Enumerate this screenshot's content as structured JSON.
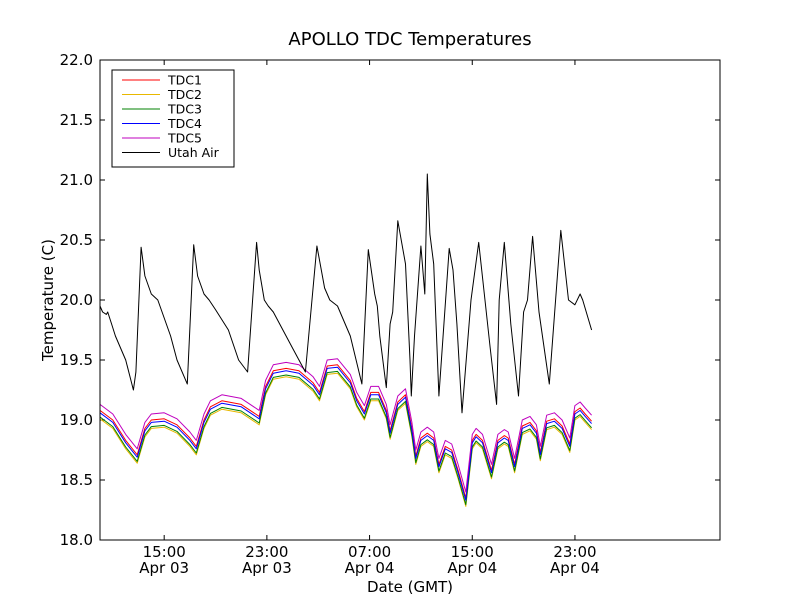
{
  "chart_data": {
    "type": "line",
    "title": "APOLLO TDC Temperatures",
    "xlabel": "Date (GMT)",
    "ylabel": "Temperature (C)",
    "xlim": [
      10.0,
      58.3
    ],
    "ylim": [
      18.0,
      22.0
    ],
    "x_unit": "hours since Apr 03 00:00 GMT",
    "x_ticks": [
      {
        "value": 15,
        "line1": "15:00",
        "line2": "Apr 03"
      },
      {
        "value": 23,
        "line1": "23:00",
        "line2": "Apr 03"
      },
      {
        "value": 31,
        "line1": "07:00",
        "line2": "Apr 04"
      },
      {
        "value": 39,
        "line1": "15:00",
        "line2": "Apr 04"
      },
      {
        "value": 47,
        "line1": "23:00",
        "line2": "Apr 04"
      }
    ],
    "y_ticks": [
      "18.0",
      "18.5",
      "19.0",
      "19.5",
      "20.0",
      "20.5",
      "21.0",
      "21.5",
      "22.0"
    ],
    "legend_position": "top-left",
    "series": [
      {
        "name": "TDC1",
        "color": "#ff0000",
        "offset": 0.03,
        "x": [
          10.0,
          11.0,
          12.0,
          12.9,
          13.5,
          14.0,
          15.0,
          16.0,
          17.0,
          17.5,
          18.1,
          18.6,
          19.5,
          21.0,
          22.4,
          22.9,
          23.5,
          24.5,
          25.5,
          26.6,
          27.1,
          27.7,
          28.5,
          29.5,
          30.0,
          30.6,
          31.1,
          31.7,
          32.3,
          32.6,
          33.2,
          33.8,
          34.3,
          34.6,
          35.0,
          35.5,
          36.0,
          36.4,
          36.9,
          37.4,
          37.9,
          38.5,
          39.0,
          39.3,
          39.8,
          40.5,
          41.0,
          41.5,
          41.8,
          42.3,
          42.9,
          43.5,
          44.0,
          44.3,
          44.8,
          45.4,
          46.0,
          46.6,
          47.0,
          47.4,
          47.8,
          48.3
        ],
        "y": [
          19.05,
          18.97,
          18.8,
          18.68,
          18.9,
          18.97,
          18.98,
          18.93,
          18.82,
          18.75,
          18.97,
          19.08,
          19.13,
          19.1,
          19.0,
          19.25,
          19.38,
          19.4,
          19.38,
          19.28,
          19.2,
          19.42,
          19.43,
          19.3,
          19.15,
          19.04,
          19.2,
          19.2,
          19.05,
          18.88,
          19.12,
          19.18,
          18.9,
          18.67,
          18.82,
          18.86,
          18.82,
          18.6,
          18.75,
          18.72,
          18.55,
          18.32,
          18.8,
          18.85,
          18.8,
          18.55,
          18.8,
          18.84,
          18.82,
          18.6,
          18.92,
          18.95,
          18.88,
          18.7,
          18.96,
          18.98,
          18.92,
          18.77,
          19.04,
          19.07,
          19.02,
          18.96
        ]
      },
      {
        "name": "TDC2",
        "color": "#e8b800",
        "offset": -0.04,
        "x": [
          10.0,
          11.0,
          12.0,
          12.9,
          13.5,
          14.0,
          15.0,
          16.0,
          17.0,
          17.5,
          18.1,
          18.6,
          19.5,
          21.0,
          22.4,
          22.9,
          23.5,
          24.5,
          25.5,
          26.6,
          27.1,
          27.7,
          28.5,
          29.5,
          30.0,
          30.6,
          31.1,
          31.7,
          32.3,
          32.6,
          33.2,
          33.8,
          34.3,
          34.6,
          35.0,
          35.5,
          36.0,
          36.4,
          36.9,
          37.4,
          37.9,
          38.5,
          39.0,
          39.3,
          39.8,
          40.5,
          41.0,
          41.5,
          41.8,
          42.3,
          42.9,
          43.5,
          44.0,
          44.3,
          44.8,
          45.4,
          46.0,
          46.6,
          47.0,
          47.4,
          47.8,
          48.3
        ],
        "y": [
          19.05,
          18.97,
          18.8,
          18.68,
          18.9,
          18.97,
          18.98,
          18.93,
          18.82,
          18.75,
          18.97,
          19.08,
          19.13,
          19.1,
          19.0,
          19.25,
          19.38,
          19.4,
          19.38,
          19.28,
          19.2,
          19.42,
          19.43,
          19.3,
          19.15,
          19.04,
          19.2,
          19.2,
          19.05,
          18.88,
          19.12,
          19.18,
          18.9,
          18.67,
          18.82,
          18.86,
          18.82,
          18.6,
          18.75,
          18.72,
          18.55,
          18.32,
          18.8,
          18.85,
          18.8,
          18.55,
          18.8,
          18.84,
          18.82,
          18.6,
          18.92,
          18.95,
          18.88,
          18.7,
          18.96,
          18.98,
          18.92,
          18.77,
          19.04,
          19.07,
          19.02,
          18.96
        ]
      },
      {
        "name": "TDC3",
        "color": "#008000",
        "offset": -0.025,
        "x": [
          10.0,
          11.0,
          12.0,
          12.9,
          13.5,
          14.0,
          15.0,
          16.0,
          17.0,
          17.5,
          18.1,
          18.6,
          19.5,
          21.0,
          22.4,
          22.9,
          23.5,
          24.5,
          25.5,
          26.6,
          27.1,
          27.7,
          28.5,
          29.5,
          30.0,
          30.6,
          31.1,
          31.7,
          32.3,
          32.6,
          33.2,
          33.8,
          34.3,
          34.6,
          35.0,
          35.5,
          36.0,
          36.4,
          36.9,
          37.4,
          37.9,
          38.5,
          39.0,
          39.3,
          39.8,
          40.5,
          41.0,
          41.5,
          41.8,
          42.3,
          42.9,
          43.5,
          44.0,
          44.3,
          44.8,
          45.4,
          46.0,
          46.6,
          47.0,
          47.4,
          47.8,
          48.3
        ],
        "y": [
          19.05,
          18.97,
          18.8,
          18.68,
          18.9,
          18.97,
          18.98,
          18.93,
          18.82,
          18.75,
          18.97,
          19.08,
          19.13,
          19.1,
          19.0,
          19.25,
          19.38,
          19.4,
          19.38,
          19.28,
          19.2,
          19.42,
          19.43,
          19.3,
          19.15,
          19.04,
          19.2,
          19.2,
          19.05,
          18.88,
          19.12,
          19.18,
          18.9,
          18.67,
          18.82,
          18.86,
          18.82,
          18.6,
          18.75,
          18.72,
          18.55,
          18.32,
          18.8,
          18.85,
          18.8,
          18.55,
          18.8,
          18.84,
          18.82,
          18.6,
          18.92,
          18.95,
          18.88,
          18.7,
          18.96,
          18.98,
          18.92,
          18.77,
          19.04,
          19.07,
          19.02,
          18.96
        ]
      },
      {
        "name": "TDC4",
        "color": "#0000ff",
        "offset": 0.01,
        "x": [
          10.0,
          11.0,
          12.0,
          12.9,
          13.5,
          14.0,
          15.0,
          16.0,
          17.0,
          17.5,
          18.1,
          18.6,
          19.5,
          21.0,
          22.4,
          22.9,
          23.5,
          24.5,
          25.5,
          26.6,
          27.1,
          27.7,
          28.5,
          29.5,
          30.0,
          30.6,
          31.1,
          31.7,
          32.3,
          32.6,
          33.2,
          33.8,
          34.3,
          34.6,
          35.0,
          35.5,
          36.0,
          36.4,
          36.9,
          37.4,
          37.9,
          38.5,
          39.0,
          39.3,
          39.8,
          40.5,
          41.0,
          41.5,
          41.8,
          42.3,
          42.9,
          43.5,
          44.0,
          44.3,
          44.8,
          45.4,
          46.0,
          46.6,
          47.0,
          47.4,
          47.8,
          48.3
        ],
        "y": [
          19.05,
          18.97,
          18.8,
          18.68,
          18.9,
          18.97,
          18.98,
          18.93,
          18.82,
          18.75,
          18.97,
          19.08,
          19.13,
          19.1,
          19.0,
          19.25,
          19.38,
          19.4,
          19.38,
          19.28,
          19.2,
          19.42,
          19.43,
          19.3,
          19.15,
          19.04,
          19.2,
          19.2,
          19.05,
          18.88,
          19.12,
          19.18,
          18.9,
          18.67,
          18.82,
          18.86,
          18.82,
          18.6,
          18.75,
          18.72,
          18.55,
          18.32,
          18.8,
          18.85,
          18.8,
          18.55,
          18.8,
          18.84,
          18.82,
          18.6,
          18.92,
          18.95,
          18.88,
          18.7,
          18.96,
          18.98,
          18.92,
          18.77,
          19.04,
          19.07,
          19.02,
          18.96
        ]
      },
      {
        "name": "TDC5",
        "color": "#bf00bf",
        "offset": 0.08,
        "x": [
          10.0,
          11.0,
          12.0,
          12.9,
          13.5,
          14.0,
          15.0,
          16.0,
          17.0,
          17.5,
          18.1,
          18.6,
          19.5,
          21.0,
          22.4,
          22.9,
          23.5,
          24.5,
          25.5,
          26.6,
          27.1,
          27.7,
          28.5,
          29.5,
          30.0,
          30.6,
          31.1,
          31.7,
          32.3,
          32.6,
          33.2,
          33.8,
          34.3,
          34.6,
          35.0,
          35.5,
          36.0,
          36.4,
          36.9,
          37.4,
          37.9,
          38.5,
          39.0,
          39.3,
          39.8,
          40.5,
          41.0,
          41.5,
          41.8,
          42.3,
          42.9,
          43.5,
          44.0,
          44.3,
          44.8,
          45.4,
          46.0,
          46.6,
          47.0,
          47.4,
          47.8,
          48.3
        ],
        "y": [
          19.05,
          18.97,
          18.8,
          18.68,
          18.9,
          18.97,
          18.98,
          18.93,
          18.82,
          18.75,
          18.97,
          19.08,
          19.13,
          19.1,
          19.0,
          19.25,
          19.38,
          19.4,
          19.38,
          19.28,
          19.2,
          19.42,
          19.43,
          19.3,
          19.15,
          19.04,
          19.2,
          19.2,
          19.05,
          18.88,
          19.12,
          19.18,
          18.9,
          18.67,
          18.82,
          18.86,
          18.82,
          18.6,
          18.75,
          18.72,
          18.55,
          18.32,
          18.8,
          18.85,
          18.8,
          18.55,
          18.8,
          18.84,
          18.82,
          18.6,
          18.92,
          18.95,
          18.88,
          18.7,
          18.96,
          18.98,
          18.92,
          18.77,
          19.04,
          19.07,
          19.02,
          18.96
        ]
      },
      {
        "name": "Utah Air",
        "color": "#000000",
        "offset": 0,
        "x": [
          10.0,
          10.2,
          10.5,
          10.6,
          10.9,
          11.2,
          12.0,
          12.6,
          12.8,
          13.2,
          13.5,
          14.0,
          14.5,
          15.5,
          16.0,
          16.8,
          17.3,
          17.6,
          18.1,
          18.5,
          19.0,
          20.0,
          20.8,
          21.5,
          22.2,
          22.4,
          22.8,
          23.1,
          23.5,
          24.0,
          25.0,
          26.0,
          26.9,
          27.5,
          27.9,
          28.5,
          29.5,
          30.4,
          30.9,
          31.4,
          31.6,
          31.8,
          32.3,
          32.6,
          32.8,
          33.2,
          33.8,
          34.15,
          34.25,
          34.5,
          35.0,
          35.3,
          35.5,
          35.7,
          36.0,
          36.4,
          37.2,
          37.5,
          37.8,
          38.2,
          38.9,
          39.5,
          40.4,
          40.9,
          41.1,
          41.5,
          42.0,
          42.6,
          43.0,
          43.3,
          43.7,
          44.2,
          45.0,
          45.9,
          46.5,
          47.0,
          47.4,
          47.6,
          48.3
        ],
        "y": [
          19.95,
          19.9,
          19.88,
          19.9,
          19.8,
          19.7,
          19.5,
          19.25,
          19.4,
          20.44,
          20.2,
          20.05,
          20.0,
          19.7,
          19.5,
          19.3,
          20.46,
          20.2,
          20.05,
          20.0,
          19.92,
          19.75,
          19.5,
          19.4,
          20.48,
          20.25,
          20.0,
          19.95,
          19.9,
          19.8,
          19.6,
          19.4,
          20.45,
          20.1,
          20.0,
          19.95,
          19.7,
          19.3,
          20.42,
          20.05,
          19.95,
          19.7,
          19.27,
          19.8,
          19.9,
          20.66,
          20.3,
          19.5,
          19.2,
          19.7,
          20.45,
          20.05,
          21.05,
          20.55,
          20.3,
          19.2,
          20.43,
          20.25,
          19.8,
          19.06,
          20.0,
          20.48,
          19.6,
          19.13,
          20.0,
          20.48,
          19.8,
          19.2,
          19.9,
          20.0,
          20.53,
          19.9,
          19.3,
          20.58,
          20.0,
          19.96,
          20.05,
          20.0,
          19.75
        ]
      }
    ]
  }
}
